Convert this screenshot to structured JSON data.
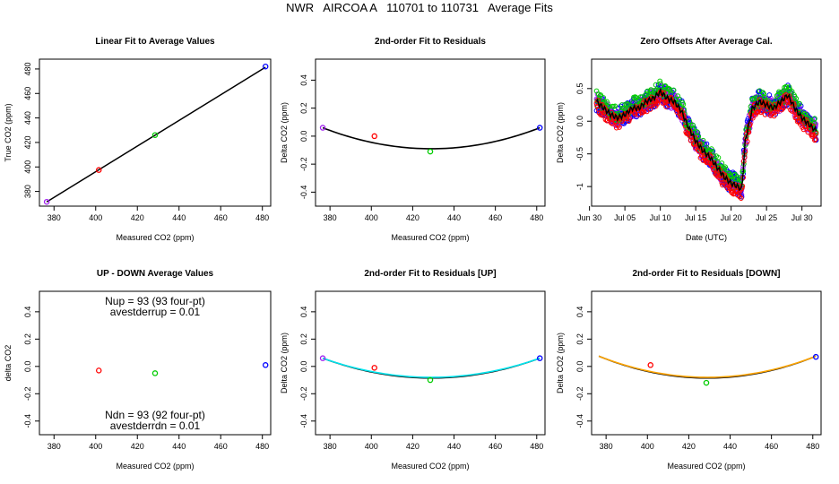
{
  "main_title": "NWR   AIRCOA A   110701 to 110731   Average Fits",
  "colors": {
    "red": "#ff0000",
    "green": "#00cc00",
    "blue": "#0000ff",
    "purple": "#a020f0",
    "cyan": "#00e5ee",
    "orange": "#ffa500",
    "black": "#000000"
  },
  "chart_data": [
    {
      "type": "scatter",
      "title": "Linear Fit to Average Values",
      "xlabel": "Measured CO2 (ppm)",
      "ylabel": "True CO2 (ppm)",
      "xlim": [
        373,
        484
      ],
      "ylim": [
        368,
        488
      ],
      "xticks": [
        380,
        400,
        420,
        440,
        460,
        480
      ],
      "yticks": [
        380,
        400,
        420,
        440,
        460,
        480
      ],
      "points": [
        {
          "x": 376.5,
          "y": 371.5,
          "color": "purple"
        },
        {
          "x": 401.5,
          "y": 397.5,
          "color": "red"
        },
        {
          "x": 428.5,
          "y": 426.0,
          "color": "green"
        },
        {
          "x": 481.5,
          "y": 482.0,
          "color": "blue"
        }
      ],
      "fit_line": {
        "type": "linear",
        "slope": 1.0466,
        "intercept": -22.55,
        "x_range": [
          376.5,
          481.5
        ],
        "color": "black"
      }
    },
    {
      "type": "scatter",
      "title": "2nd-order Fit to Residuals",
      "xlabel": "Measured CO2 (ppm)",
      "ylabel": "Delta CO2 (ppm)",
      "xlim": [
        373,
        484
      ],
      "ylim": [
        -0.5,
        0.55
      ],
      "xticks": [
        380,
        400,
        420,
        440,
        460,
        480
      ],
      "yticks": [
        -0.4,
        -0.2,
        0.0,
        0.2,
        0.4
      ],
      "points": [
        {
          "x": 376.5,
          "y": 0.06,
          "color": "purple"
        },
        {
          "x": 401.5,
          "y": 0.0,
          "color": "red"
        },
        {
          "x": 428.5,
          "y": -0.11,
          "color": "green"
        },
        {
          "x": 481.5,
          "y": 0.06,
          "color": "blue"
        }
      ],
      "fit_curves": [
        {
          "type": "quadratic",
          "vertex_x": 429,
          "vertex_y": -0.09,
          "a": 5.44e-05,
          "x_range": [
            376.5,
            481.5
          ],
          "color": "black"
        }
      ]
    },
    {
      "type": "line",
      "title": "Zero Offsets After Average Cal.",
      "xlabel": "Date (UTC)",
      "ylabel": "Delta CO2 (ppm)",
      "xlim": [
        0.3,
        32.7
      ],
      "ylim": [
        -1.3,
        0.95
      ],
      "xticks": [
        {
          "v": 0,
          "label": "Jun 30"
        },
        {
          "v": 5,
          "label": "Jul 05"
        },
        {
          "v": 10,
          "label": "Jul 10"
        },
        {
          "v": 15,
          "label": "Jul 15"
        },
        {
          "v": 20,
          "label": "Jul 20"
        },
        {
          "v": 25,
          "label": "Jul 25"
        },
        {
          "v": 30,
          "label": "Jul 30"
        }
      ],
      "yticks": [
        -1.0,
        -0.5,
        0.0,
        0.5
      ],
      "trend": [
        [
          1,
          0.3
        ],
        [
          2,
          0.2
        ],
        [
          3,
          0.1
        ],
        [
          4,
          0.05
        ],
        [
          5,
          0.1
        ],
        [
          6,
          0.2
        ],
        [
          7,
          0.2
        ],
        [
          8,
          0.3
        ],
        [
          9,
          0.35
        ],
        [
          10,
          0.45
        ],
        [
          11,
          0.35
        ],
        [
          12,
          0.3
        ],
        [
          13,
          0.15
        ],
        [
          14,
          -0.1
        ],
        [
          15,
          -0.3
        ],
        [
          16,
          -0.45
        ],
        [
          17,
          -0.55
        ],
        [
          18,
          -0.7
        ],
        [
          19,
          -0.85
        ],
        [
          20,
          -0.95
        ],
        [
          21,
          -1.0
        ],
        [
          21.5,
          -1.05
        ],
        [
          22,
          -0.3
        ],
        [
          23,
          0.2
        ],
        [
          24,
          0.3
        ],
        [
          25,
          0.25
        ],
        [
          26,
          0.2
        ],
        [
          27,
          0.3
        ],
        [
          28,
          0.4
        ],
        [
          29,
          0.2
        ],
        [
          30,
          0.05
        ],
        [
          31,
          -0.05
        ],
        [
          32,
          -0.15
        ]
      ],
      "series": [
        {
          "name": "purple",
          "color": "purple",
          "spread": 0.13,
          "offset": 0.0
        },
        {
          "name": "blue",
          "color": "blue",
          "spread": 0.16,
          "offset": 0.02
        },
        {
          "name": "green",
          "color": "green",
          "spread": 0.12,
          "offset": 0.06
        },
        {
          "name": "red",
          "color": "red",
          "spread": 0.1,
          "offset": -0.06
        }
      ],
      "mean_line_color": "black"
    },
    {
      "type": "scatter",
      "title": "UP - DOWN Average Values",
      "xlabel": "Measured CO2 (ppm)",
      "ylabel": "delta CO2",
      "xlim": [
        373,
        484
      ],
      "ylim": [
        -0.5,
        0.55
      ],
      "xticks": [
        380,
        400,
        420,
        440,
        460,
        480
      ],
      "yticks": [
        -0.4,
        -0.2,
        0.0,
        0.2,
        0.4
      ],
      "annotations": {
        "nup": "Nup = 93 (93 four-pt)",
        "avestderrup": "avestderrup =  0.01",
        "ndn": "Ndn = 93 (92 four-pt)",
        "avestderrdn": "avestderrdn =  0.01"
      },
      "points": [
        {
          "x": 401.5,
          "y": -0.03,
          "color": "red"
        },
        {
          "x": 428.5,
          "y": -0.05,
          "color": "green"
        },
        {
          "x": 481.5,
          "y": 0.01,
          "color": "blue"
        }
      ]
    },
    {
      "type": "scatter",
      "title": "2nd-order Fit to Residuals [UP]",
      "xlabel": "Measured CO2 (ppm)",
      "ylabel": "Delta CO2 (ppm)",
      "xlim": [
        373,
        484
      ],
      "ylim": [
        -0.5,
        0.55
      ],
      "xticks": [
        380,
        400,
        420,
        440,
        460,
        480
      ],
      "yticks": [
        -0.4,
        -0.2,
        0.0,
        0.2,
        0.4
      ],
      "points": [
        {
          "x": 376.5,
          "y": 0.06,
          "color": "purple"
        },
        {
          "x": 401.5,
          "y": -0.01,
          "color": "red"
        },
        {
          "x": 428.5,
          "y": -0.1,
          "color": "green"
        },
        {
          "x": 481.5,
          "y": 0.06,
          "color": "blue"
        }
      ],
      "fit_curves": [
        {
          "type": "quadratic",
          "vertex_x": 429,
          "vertex_y": -0.085,
          "a": 5.26e-05,
          "x_range": [
            376.5,
            481.5
          ],
          "color": "black"
        },
        {
          "type": "quadratic",
          "vertex_x": 429,
          "vertex_y": -0.08,
          "a": 5.08e-05,
          "x_range": [
            376.5,
            481.5
          ],
          "color": "cyan"
        }
      ]
    },
    {
      "type": "scatter",
      "title": "2nd-order Fit to Residuals [DOWN]",
      "xlabel": "Measured CO2 (ppm)",
      "ylabel": "Delta CO2 (ppm)",
      "xlim": [
        373,
        484
      ],
      "ylim": [
        -0.5,
        0.55
      ],
      "xticks": [
        380,
        400,
        420,
        440,
        460,
        480
      ],
      "yticks": [
        -0.4,
        -0.2,
        0.0,
        0.2,
        0.4
      ],
      "points": [
        {
          "x": 401.5,
          "y": 0.01,
          "color": "red"
        },
        {
          "x": 428.5,
          "y": -0.12,
          "color": "green"
        },
        {
          "x": 481.5,
          "y": 0.07,
          "color": "blue"
        }
      ],
      "fit_curves": [
        {
          "type": "quadratic",
          "vertex_x": 429,
          "vertex_y": -0.085,
          "a": 5.8e-05,
          "x_range": [
            376.5,
            481.5
          ],
          "color": "black"
        },
        {
          "type": "quadratic",
          "vertex_x": 429,
          "vertex_y": -0.08,
          "a": 5.62e-05,
          "x_range": [
            376.5,
            481.5
          ],
          "color": "orange"
        }
      ]
    }
  ]
}
